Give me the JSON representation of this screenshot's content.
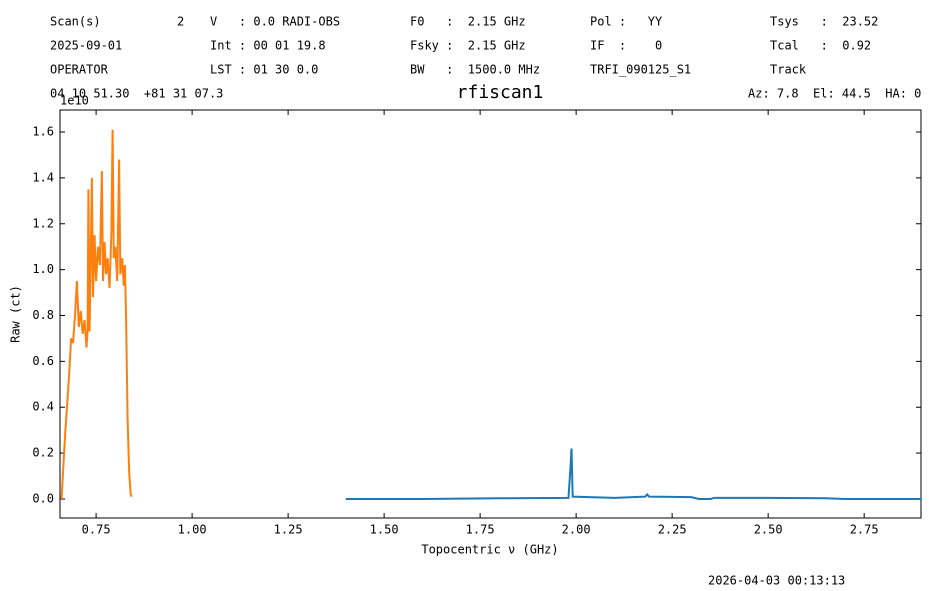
{
  "header": [
    [
      "Scan(s)",
      "2",
      "V   : 0.0 RADI-OBS",
      "F0   :  2.15 GHz",
      "Pol :   YY",
      "Tsys   :  23.52"
    ],
    [
      "2025-09-01",
      "Int : 00 01 19.8",
      "Fsky :  2.15 GHz",
      "IF  :    0",
      "Tcal   :  0.92"
    ],
    [
      "OPERATOR",
      "LST : 01 30 0.0",
      "BW   :  1500.0 MHz",
      "TRFI_090125_S1",
      "Track"
    ],
    [
      "04 10 51.30  +81 31 07.3",
      "Az: 7.8  El: 44.5  HA: 0"
    ]
  ],
  "footer": "2026-04-03 00:13:13",
  "chart_data": {
    "type": "line",
    "title": "rfiscan1",
    "x_label": "Topocentric ν (GHz)",
    "y_label": "Raw (ct)",
    "offset_label": "1e10",
    "xlim": [
      0.656,
      2.898
    ],
    "ylim": [
      -0.083,
      1.696
    ],
    "xticks": [
      {
        "value": 0.75,
        "label": "0.75"
      },
      {
        "value": 1.0,
        "label": "1.00"
      },
      {
        "value": 1.25,
        "label": "1.25"
      },
      {
        "value": 1.5,
        "label": "1.50"
      },
      {
        "value": 1.75,
        "label": "1.75"
      },
      {
        "value": 2.0,
        "label": "2.00"
      },
      {
        "value": 2.25,
        "label": "2.25"
      },
      {
        "value": 2.5,
        "label": "2.50"
      },
      {
        "value": 2.75,
        "label": "2.75"
      }
    ],
    "yticks": [
      {
        "value": 0,
        "label": "0.0"
      },
      0.2,
      0.4,
      0.6,
      0.8,
      {
        "value": 1,
        "label": "1.0"
      },
      1.2,
      1.4,
      1.6
    ],
    "series": [
      {
        "color": "#1f77b4",
        "x": [
          1.4,
          1.6,
          1.8,
          1.98,
          1.985,
          1.988,
          1.991,
          2.1,
          2.18,
          2.185,
          2.19,
          2.3,
          2.32,
          2.35,
          2.36,
          2.5,
          2.65,
          2.7,
          2.9
        ],
        "values": [
          0.0,
          0.0,
          0.003,
          0.005,
          0.13,
          0.22,
          0.01,
          0.005,
          0.01,
          0.02,
          0.01,
          0.008,
          0.0,
          0.0,
          0.005,
          0.005,
          0.003,
          0.0,
          0.0
        ]
      },
      {
        "color": "#ff7f0e",
        "x": [
          0.66,
          0.665,
          0.67,
          0.675,
          0.68,
          0.685,
          0.69,
          0.695,
          0.7,
          0.705,
          0.71,
          0.715,
          0.72,
          0.725,
          0.728,
          0.73,
          0.733,
          0.736,
          0.739,
          0.742,
          0.746,
          0.75,
          0.755,
          0.76,
          0.765,
          0.768,
          0.772,
          0.776,
          0.78,
          0.785,
          0.79,
          0.793,
          0.796,
          0.8,
          0.805,
          0.81,
          0.813,
          0.818,
          0.822,
          0.825,
          0.828,
          0.832,
          0.836,
          0.84,
          0.843
        ],
        "values": [
          0.0,
          0.15,
          0.3,
          0.42,
          0.55,
          0.7,
          0.68,
          0.8,
          0.95,
          0.75,
          0.82,
          0.72,
          0.78,
          0.66,
          0.74,
          1.35,
          0.73,
          1.05,
          1.4,
          0.88,
          1.15,
          0.95,
          1.1,
          1.02,
          1.43,
          0.95,
          1.12,
          0.98,
          1.05,
          0.92,
          1.17,
          1.61,
          1.05,
          1.1,
          0.95,
          1.48,
          0.98,
          1.05,
          0.93,
          1.02,
          0.8,
          0.35,
          0.12,
          0.02,
          0.01
        ]
      }
    ]
  }
}
